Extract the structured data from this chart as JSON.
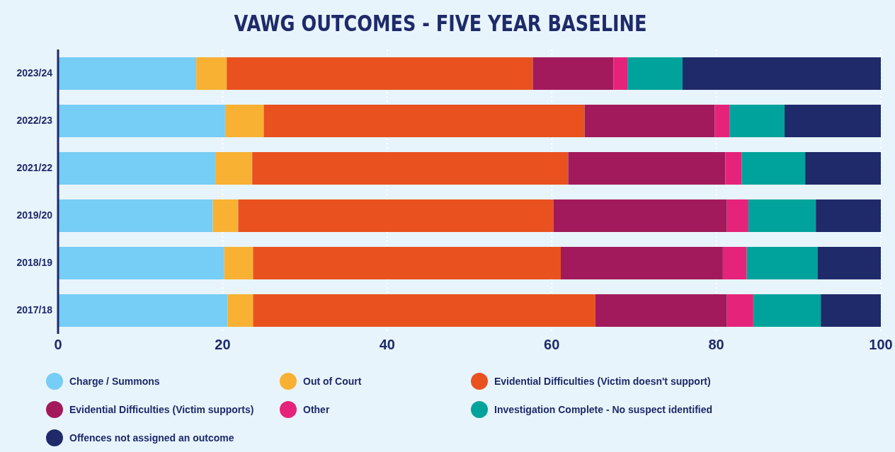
{
  "chart_data": {
    "type": "bar",
    "orientation": "horizontal",
    "stacked": true,
    "title": "VAWG OUTCOMES - FIVE YEAR BASELINE",
    "categories": [
      "2023/24",
      "2022/23",
      "2021/22",
      "2019/20",
      "2018/19",
      "2017/18"
    ],
    "series": [
      {
        "name": "Charge / Summons",
        "color": "#76cdf5",
        "values": [
          16.8,
          20.3,
          19.1,
          18.8,
          20.2,
          20.6
        ]
      },
      {
        "name": "Out of Court",
        "color": "#f8b133",
        "values": [
          3.7,
          4.7,
          4.5,
          3.1,
          3.5,
          3.1
        ]
      },
      {
        "name": "Evidential Difficulties (Victim doesn't support)",
        "color": "#e9511f",
        "values": [
          37.2,
          39.0,
          38.4,
          38.3,
          37.4,
          41.6
        ]
      },
      {
        "name": "Evidential Difficulties (Victim supports)",
        "color": "#a21a5b",
        "values": [
          9.8,
          15.8,
          19.1,
          21.1,
          19.7,
          16.0
        ]
      },
      {
        "name": "Other",
        "color": "#e6237a",
        "values": [
          1.7,
          1.8,
          2.0,
          2.6,
          2.9,
          3.2
        ]
      },
      {
        "name": "Investigation Complete - No suspect identified",
        "color": "#00a39b",
        "values": [
          6.7,
          6.7,
          7.7,
          8.2,
          8.6,
          8.2
        ]
      },
      {
        "name": "Offences not assigned an outcome",
        "color": "#1e2a69",
        "values": [
          24.1,
          11.7,
          9.2,
          7.9,
          7.7,
          7.3
        ]
      }
    ],
    "xlim": [
      0,
      100
    ],
    "xticks": [
      0,
      20,
      40,
      60,
      80,
      100
    ],
    "grid": "x",
    "legend": "bottom"
  }
}
